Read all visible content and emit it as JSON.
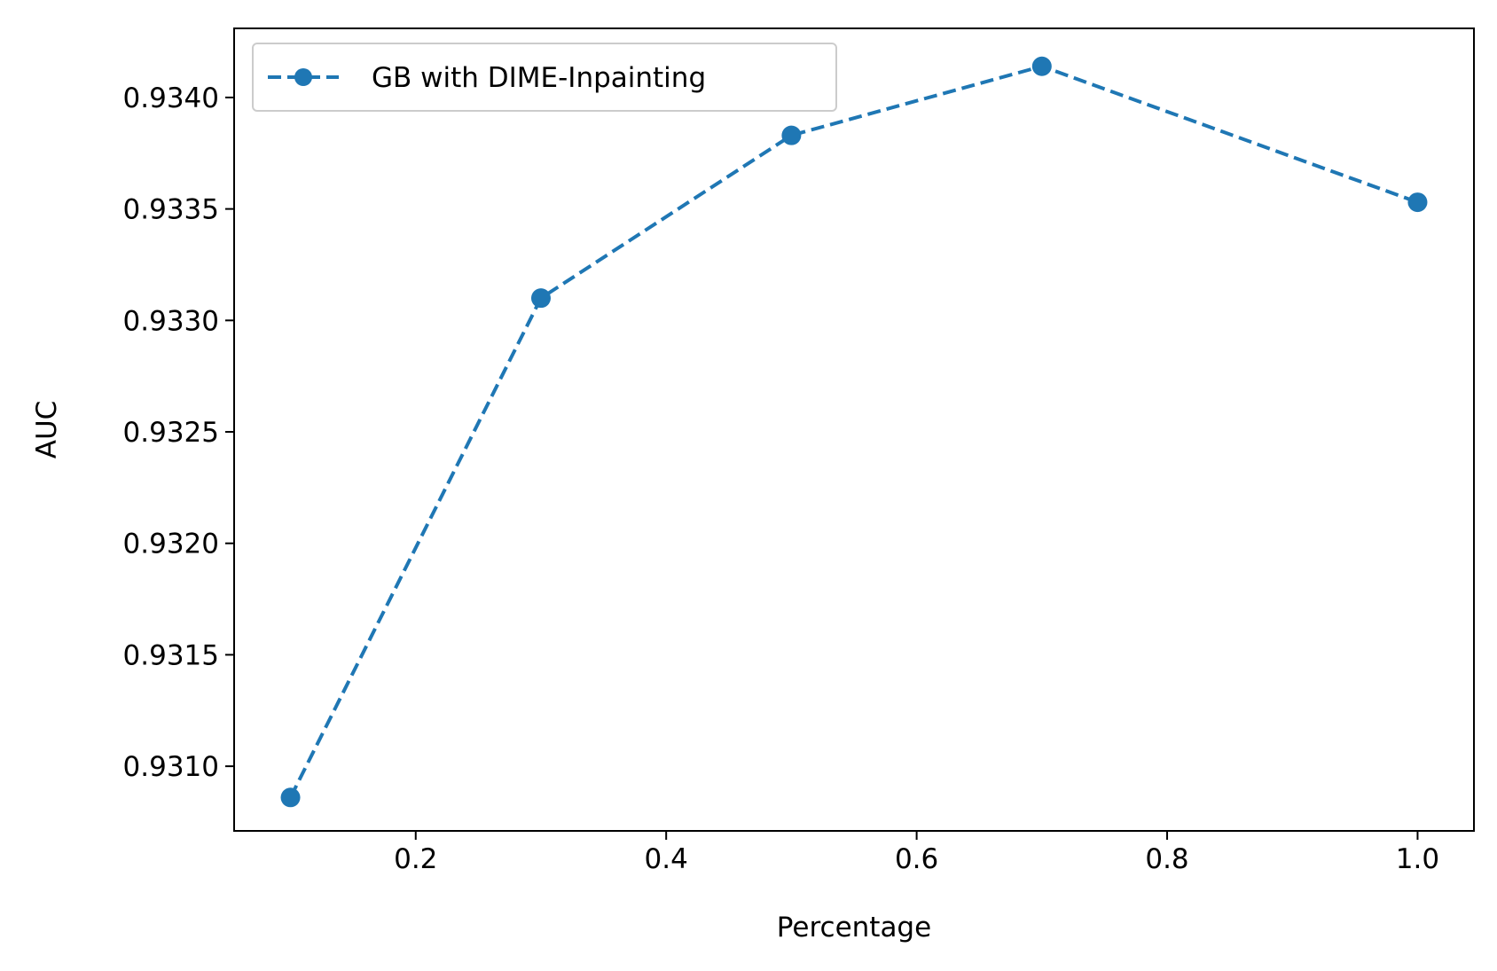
{
  "chart_data": {
    "type": "line",
    "title": "",
    "xlabel": "Percentage",
    "ylabel": "AUC",
    "xlim": [
      0.055,
      1.045
    ],
    "ylim": [
      0.93071,
      0.93431
    ],
    "x_ticks": [
      0.2,
      0.4,
      0.6,
      0.8,
      1.0
    ],
    "x_tick_labels": [
      "0.2",
      "0.4",
      "0.6",
      "0.8",
      "1.0"
    ],
    "y_ticks": [
      0.931,
      0.9315,
      0.932,
      0.9325,
      0.933,
      0.9335,
      0.934
    ],
    "y_tick_labels": [
      "0.9310",
      "0.9315",
      "0.9320",
      "0.9325",
      "0.9330",
      "0.9335",
      "0.9340"
    ],
    "grid": false,
    "legend_position": "top-left",
    "series": [
      {
        "name": "GB with DIME-Inpainting",
        "color": "#1f77b4",
        "line_style": "dashed",
        "marker": "circle",
        "x": [
          0.1,
          0.3,
          0.5,
          0.7,
          1.0
        ],
        "y": [
          0.93086,
          0.9331,
          0.93383,
          0.93414,
          0.93353
        ]
      }
    ]
  }
}
